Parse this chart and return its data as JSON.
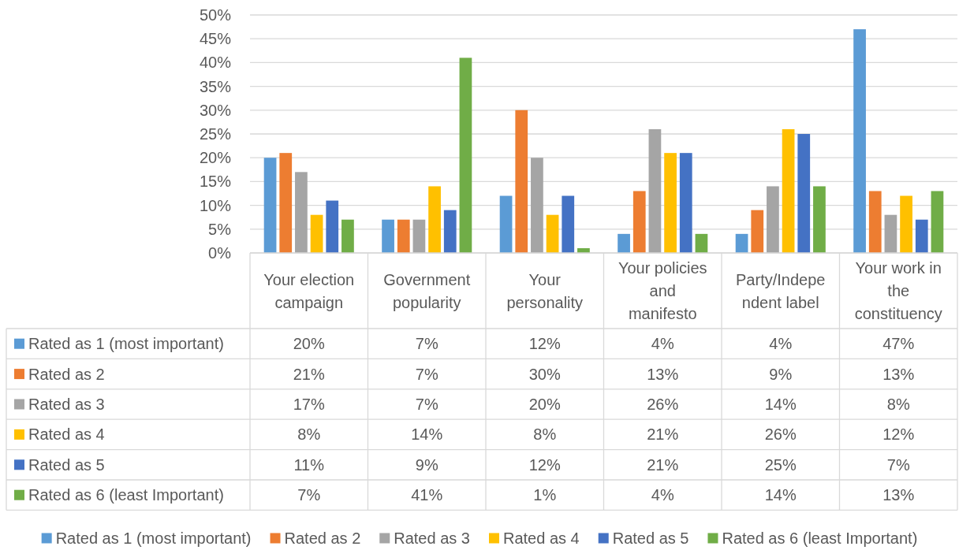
{
  "chart_data": {
    "type": "bar",
    "categories": [
      "Your election campaign",
      "Government popularity",
      "Your personality",
      "Your policies and manifesto",
      "Party/Independent label",
      "Your work in the constituency"
    ],
    "series": [
      {
        "name": "Rated as 1 (most important)",
        "color": "#5b9bd5",
        "values": [
          20,
          7,
          12,
          4,
          4,
          47
        ],
        "value_labels": [
          "20%",
          "7%",
          "12%",
          "4%",
          "4%",
          "47%"
        ]
      },
      {
        "name": "Rated as 2",
        "color": "#ed7d31",
        "values": [
          21,
          7,
          30,
          13,
          9,
          13
        ],
        "value_labels": [
          "21%",
          "7%",
          "30%",
          "13%",
          "9%",
          "13%"
        ]
      },
      {
        "name": "Rated as 3",
        "color": "#a5a5a5",
        "values": [
          17,
          7,
          20,
          26,
          14,
          8
        ],
        "value_labels": [
          "17%",
          "7%",
          "20%",
          "26%",
          "14%",
          "8%"
        ]
      },
      {
        "name": "Rated as 4",
        "color": "#ffc000",
        "values": [
          8,
          14,
          8,
          21,
          26,
          12
        ],
        "value_labels": [
          "8%",
          "14%",
          "8%",
          "21%",
          "26%",
          "12%"
        ]
      },
      {
        "name": "Rated as 5",
        "color": "#4472c4",
        "values": [
          11,
          9,
          12,
          21,
          25,
          7
        ],
        "value_labels": [
          "11%",
          "9%",
          "12%",
          "21%",
          "25%",
          "7%"
        ]
      },
      {
        "name": "Rated as 6 (least Important)",
        "color": "#70ad47",
        "values": [
          7,
          41,
          1,
          4,
          14,
          13
        ],
        "value_labels": [
          "7%",
          "41%",
          "1%",
          "4%",
          "14%",
          "13%"
        ]
      }
    ],
    "ylim": [
      0,
      50
    ],
    "yticks": [
      {
        "value": 0,
        "label": "0%"
      },
      {
        "value": 5,
        "label": "5%"
      },
      {
        "value": 10,
        "label": "10%"
      },
      {
        "value": 15,
        "label": "15%"
      },
      {
        "value": 20,
        "label": "20%"
      },
      {
        "value": 25,
        "label": "25%"
      },
      {
        "value": 30,
        "label": "30%"
      },
      {
        "value": 35,
        "label": "35%"
      },
      {
        "value": 40,
        "label": "40%"
      },
      {
        "value": 45,
        "label": "45%"
      },
      {
        "value": 50,
        "label": "50%"
      }
    ],
    "grid": "y",
    "legend": "bottom"
  }
}
